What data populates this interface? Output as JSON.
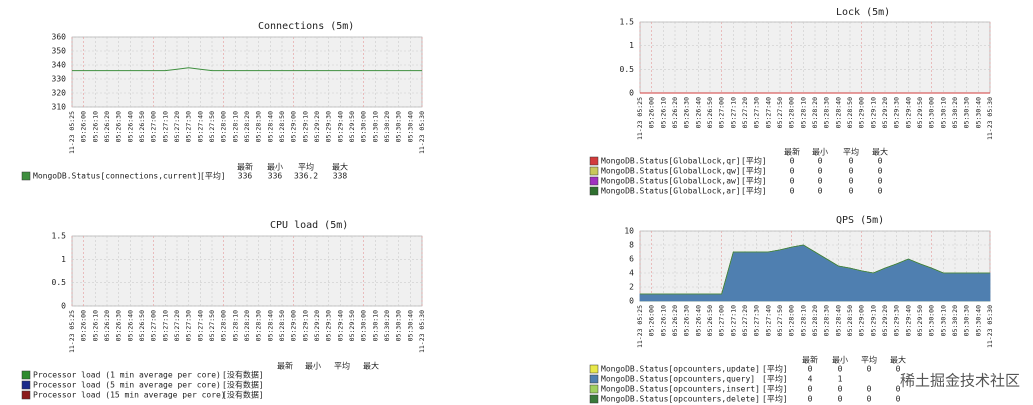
{
  "chart_data": [
    {
      "type": "line",
      "title": "Connections (5m)",
      "categories": [
        "11-23 05:25",
        "05:26:00",
        "05:26:10",
        "05:26:20",
        "05:26:30",
        "05:26:40",
        "05:26:50",
        "05:27:00",
        "05:27:10",
        "05:27:20",
        "05:27:30",
        "05:27:40",
        "05:27:50",
        "05:28:00",
        "05:28:10",
        "05:28:20",
        "05:28:30",
        "05:28:40",
        "05:28:50",
        "05:29:00",
        "05:29:10",
        "05:29:20",
        "05:29:30",
        "05:29:40",
        "05:29:50",
        "05:30:00",
        "05:30:10",
        "05:30:20",
        "05:30:30",
        "05:30:40",
        "11-23 05:30"
      ],
      "ylim": [
        310,
        360
      ],
      "yticks": [
        310,
        320,
        330,
        340,
        350,
        360
      ],
      "grid": true,
      "legend_columns": [
        "最新",
        "最小",
        "平均",
        "最大"
      ],
      "series": [
        {
          "name": "MongoDB.Status[connections,current]",
          "color": "#3f8f3f",
          "function": "[平均]",
          "stats": [
            336,
            336,
            336.2,
            338
          ],
          "values": [
            336,
            336,
            336,
            336,
            336,
            336,
            336,
            336,
            336,
            337,
            338,
            337,
            336,
            336,
            336,
            336,
            336,
            336,
            336,
            336,
            336,
            336,
            336,
            336,
            336,
            336,
            336,
            336,
            336,
            336,
            336
          ]
        }
      ]
    },
    {
      "type": "line",
      "title": "Lock (5m)",
      "categories": [
        "11-23 05:25",
        "05:26:00",
        "05:26:10",
        "05:26:20",
        "05:26:30",
        "05:26:40",
        "05:26:50",
        "05:27:00",
        "05:27:10",
        "05:27:20",
        "05:27:30",
        "05:27:40",
        "05:27:50",
        "05:28:00",
        "05:28:10",
        "05:28:20",
        "05:28:30",
        "05:28:40",
        "05:28:50",
        "05:29:00",
        "05:29:10",
        "05:29:20",
        "05:29:30",
        "05:29:40",
        "05:29:50",
        "05:30:00",
        "05:30:10",
        "05:30:20",
        "05:30:30",
        "05:30:40",
        "11-23 05:30"
      ],
      "ylim": [
        0,
        1.5
      ],
      "yticks": [
        0,
        0.5,
        1,
        1.5
      ],
      "grid": true,
      "legend_columns": [
        "最新",
        "最小",
        "平均",
        "最大"
      ],
      "series": [
        {
          "name": "MongoDB.Status[GlobalLock,qr]",
          "color": "#d23b3b",
          "function": "[平均]",
          "stats": [
            0,
            0,
            0,
            0
          ],
          "values": [
            0,
            0,
            0,
            0,
            0,
            0,
            0,
            0,
            0,
            0,
            0,
            0,
            0,
            0,
            0,
            0,
            0,
            0,
            0,
            0,
            0,
            0,
            0,
            0,
            0,
            0,
            0,
            0,
            0,
            0,
            0
          ]
        },
        {
          "name": "MongoDB.Status[GlobalLock,qw]",
          "color": "#c8c85a",
          "function": "[平均]",
          "stats": [
            0,
            0,
            0,
            0
          ],
          "values": [
            0,
            0,
            0,
            0,
            0,
            0,
            0,
            0,
            0,
            0,
            0,
            0,
            0,
            0,
            0,
            0,
            0,
            0,
            0,
            0,
            0,
            0,
            0,
            0,
            0,
            0,
            0,
            0,
            0,
            0,
            0
          ]
        },
        {
          "name": "MongoDB.Status[GlobalLock,aw]",
          "color": "#a030c0",
          "function": "[平均]",
          "stats": [
            0,
            0,
            0,
            0
          ],
          "values": [
            0,
            0,
            0,
            0,
            0,
            0,
            0,
            0,
            0,
            0,
            0,
            0,
            0,
            0,
            0,
            0,
            0,
            0,
            0,
            0,
            0,
            0,
            0,
            0,
            0,
            0,
            0,
            0,
            0,
            0,
            0
          ]
        },
        {
          "name": "MongoDB.Status[GlobalLock,ar]",
          "color": "#2f6f2f",
          "function": "[平均]",
          "stats": [
            0,
            0,
            0,
            0
          ],
          "values": [
            0,
            0,
            0,
            0,
            0,
            0,
            0,
            0,
            0,
            0,
            0,
            0,
            0,
            0,
            0,
            0,
            0,
            0,
            0,
            0,
            0,
            0,
            0,
            0,
            0,
            0,
            0,
            0,
            0,
            0,
            0
          ]
        }
      ]
    },
    {
      "type": "line",
      "title": "CPU load (5m)",
      "categories": [
        "11-23 05:25",
        "05:26:00",
        "05:26:10",
        "05:26:20",
        "05:26:30",
        "05:26:40",
        "05:26:50",
        "05:27:00",
        "05:27:10",
        "05:27:20",
        "05:27:30",
        "05:27:40",
        "05:27:50",
        "05:28:00",
        "05:28:10",
        "05:28:20",
        "05:28:30",
        "05:28:40",
        "05:28:50",
        "05:29:00",
        "05:29:10",
        "05:29:20",
        "05:29:30",
        "05:29:40",
        "05:29:50",
        "05:30:00",
        "05:30:10",
        "05:30:20",
        "05:30:30",
        "05:30:40",
        "11-23 05:30"
      ],
      "ylim": [
        0,
        1.5
      ],
      "yticks": [
        0,
        0.5,
        1,
        1.5
      ],
      "grid": true,
      "legend_columns": [
        "最新",
        "最小",
        "平均",
        "最大"
      ],
      "series": [
        {
          "name": "Processor load (1 min average per core)",
          "color": "#2e8b2e",
          "function": "[没有数据]",
          "values": [
            null,
            null,
            null,
            null,
            null,
            null,
            null,
            null,
            null,
            null,
            null,
            null,
            null,
            null,
            null,
            null,
            null,
            null,
            null,
            null,
            null,
            null,
            null,
            null,
            null,
            null,
            null,
            null,
            null,
            null,
            null
          ]
        },
        {
          "name": "Processor load (5 min average per core)",
          "color": "#1a2a8a",
          "function": "[没有数据]",
          "values": [
            null,
            null,
            null,
            null,
            null,
            null,
            null,
            null,
            null,
            null,
            null,
            null,
            null,
            null,
            null,
            null,
            null,
            null,
            null,
            null,
            null,
            null,
            null,
            null,
            null,
            null,
            null,
            null,
            null,
            null,
            null
          ]
        },
        {
          "name": "Processor load (15 min average per core)",
          "color": "#8b1a1a",
          "function": "[没有数据]",
          "values": [
            null,
            null,
            null,
            null,
            null,
            null,
            null,
            null,
            null,
            null,
            null,
            null,
            null,
            null,
            null,
            null,
            null,
            null,
            null,
            null,
            null,
            null,
            null,
            null,
            null,
            null,
            null,
            null,
            null,
            null,
            null
          ]
        }
      ]
    },
    {
      "type": "area",
      "title": "QPS (5m)",
      "categories": [
        "11-23 05:25",
        "05:26:00",
        "05:26:10",
        "05:26:20",
        "05:26:30",
        "05:26:40",
        "05:26:50",
        "05:27:00",
        "05:27:10",
        "05:27:20",
        "05:27:30",
        "05:27:40",
        "05:27:50",
        "05:28:00",
        "05:28:10",
        "05:28:20",
        "05:28:30",
        "05:28:40",
        "05:28:50",
        "05:29:00",
        "05:29:10",
        "05:29:20",
        "05:29:30",
        "05:29:40",
        "05:29:50",
        "05:30:00",
        "05:30:10",
        "05:30:20",
        "05:30:30",
        "05:30:40",
        "11-23 05:30"
      ],
      "ylim": [
        0,
        10
      ],
      "yticks": [
        0,
        2,
        4,
        6,
        8,
        10
      ],
      "grid": true,
      "legend_columns": [
        "最新",
        "最小",
        "平均",
        "最大"
      ],
      "series": [
        {
          "name": "MongoDB.Status[opcounters,update]",
          "color": "#e8e84a",
          "function": "[平均]",
          "stats": [
            0,
            0,
            0,
            0
          ],
          "values": [
            0,
            0,
            0,
            0,
            0,
            0,
            0,
            0,
            0,
            0,
            0,
            0,
            0,
            0,
            0,
            0,
            0,
            0,
            0,
            0,
            0,
            0,
            0,
            0,
            0,
            0,
            0,
            0,
            0,
            0,
            0
          ]
        },
        {
          "name": "MongoDB.Status[opcounters,query]",
          "color": "#4f7fb0",
          "function": "[平均]",
          "stats": [
            4,
            1
          ],
          "values": [
            1,
            1,
            1,
            1,
            1,
            1,
            1,
            1,
            7,
            7,
            7,
            7,
            7.3,
            7.7,
            8,
            7,
            6,
            5,
            4.7,
            4.3,
            4,
            4.7,
            5.3,
            6,
            5.3,
            4.7,
            4,
            4,
            4,
            4,
            4
          ]
        },
        {
          "name": "MongoDB.Status[opcounters,insert]",
          "color": "#a0d060",
          "function": "[平均]",
          "stats": [
            0,
            0,
            0,
            0
          ],
          "values": [
            0,
            0,
            0,
            0,
            0,
            0,
            0,
            0,
            0,
            0,
            0,
            0,
            0,
            0,
            0,
            0,
            0,
            0,
            0,
            0,
            0,
            0,
            0,
            0,
            0,
            0,
            0,
            0,
            0,
            0,
            0
          ]
        },
        {
          "name": "MongoDB.Status[opcounters,delete]",
          "color": "#3a7a3a",
          "function": "[平均]",
          "stats": [
            0,
            0,
            0,
            0
          ],
          "values": [
            0,
            0,
            0,
            0,
            0,
            0,
            0,
            0,
            0,
            0,
            0,
            0,
            0,
            0,
            0,
            0,
            0,
            0,
            0,
            0,
            0,
            0,
            0,
            0,
            0,
            0,
            0,
            0,
            0,
            0,
            0
          ]
        }
      ]
    }
  ],
  "watermark": "稀土掘金技术社区"
}
